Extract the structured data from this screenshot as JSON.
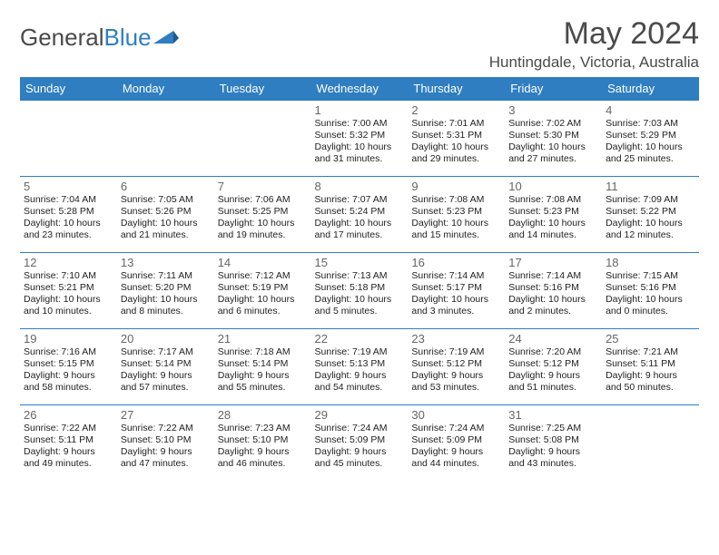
{
  "brand": {
    "part1": "General",
    "part2": "Blue"
  },
  "title": "May 2024",
  "location": "Huntingdale, Victoria, Australia",
  "header_bg": "#2f7ec1",
  "border_color": "#2f7ec1",
  "dayNames": [
    "Sunday",
    "Monday",
    "Tuesday",
    "Wednesday",
    "Thursday",
    "Friday",
    "Saturday"
  ],
  "weeks": [
    [
      null,
      null,
      null,
      {
        "n": "1",
        "sr": "7:00 AM",
        "ss": "5:32 PM",
        "dl": "10 hours and 31 minutes."
      },
      {
        "n": "2",
        "sr": "7:01 AM",
        "ss": "5:31 PM",
        "dl": "10 hours and 29 minutes."
      },
      {
        "n": "3",
        "sr": "7:02 AM",
        "ss": "5:30 PM",
        "dl": "10 hours and 27 minutes."
      },
      {
        "n": "4",
        "sr": "7:03 AM",
        "ss": "5:29 PM",
        "dl": "10 hours and 25 minutes."
      }
    ],
    [
      {
        "n": "5",
        "sr": "7:04 AM",
        "ss": "5:28 PM",
        "dl": "10 hours and 23 minutes."
      },
      {
        "n": "6",
        "sr": "7:05 AM",
        "ss": "5:26 PM",
        "dl": "10 hours and 21 minutes."
      },
      {
        "n": "7",
        "sr": "7:06 AM",
        "ss": "5:25 PM",
        "dl": "10 hours and 19 minutes."
      },
      {
        "n": "8",
        "sr": "7:07 AM",
        "ss": "5:24 PM",
        "dl": "10 hours and 17 minutes."
      },
      {
        "n": "9",
        "sr": "7:08 AM",
        "ss": "5:23 PM",
        "dl": "10 hours and 15 minutes."
      },
      {
        "n": "10",
        "sr": "7:08 AM",
        "ss": "5:23 PM",
        "dl": "10 hours and 14 minutes."
      },
      {
        "n": "11",
        "sr": "7:09 AM",
        "ss": "5:22 PM",
        "dl": "10 hours and 12 minutes."
      }
    ],
    [
      {
        "n": "12",
        "sr": "7:10 AM",
        "ss": "5:21 PM",
        "dl": "10 hours and 10 minutes."
      },
      {
        "n": "13",
        "sr": "7:11 AM",
        "ss": "5:20 PM",
        "dl": "10 hours and 8 minutes."
      },
      {
        "n": "14",
        "sr": "7:12 AM",
        "ss": "5:19 PM",
        "dl": "10 hours and 6 minutes."
      },
      {
        "n": "15",
        "sr": "7:13 AM",
        "ss": "5:18 PM",
        "dl": "10 hours and 5 minutes."
      },
      {
        "n": "16",
        "sr": "7:14 AM",
        "ss": "5:17 PM",
        "dl": "10 hours and 3 minutes."
      },
      {
        "n": "17",
        "sr": "7:14 AM",
        "ss": "5:16 PM",
        "dl": "10 hours and 2 minutes."
      },
      {
        "n": "18",
        "sr": "7:15 AM",
        "ss": "5:16 PM",
        "dl": "10 hours and 0 minutes."
      }
    ],
    [
      {
        "n": "19",
        "sr": "7:16 AM",
        "ss": "5:15 PM",
        "dl": "9 hours and 58 minutes."
      },
      {
        "n": "20",
        "sr": "7:17 AM",
        "ss": "5:14 PM",
        "dl": "9 hours and 57 minutes."
      },
      {
        "n": "21",
        "sr": "7:18 AM",
        "ss": "5:14 PM",
        "dl": "9 hours and 55 minutes."
      },
      {
        "n": "22",
        "sr": "7:19 AM",
        "ss": "5:13 PM",
        "dl": "9 hours and 54 minutes."
      },
      {
        "n": "23",
        "sr": "7:19 AM",
        "ss": "5:12 PM",
        "dl": "9 hours and 53 minutes."
      },
      {
        "n": "24",
        "sr": "7:20 AM",
        "ss": "5:12 PM",
        "dl": "9 hours and 51 minutes."
      },
      {
        "n": "25",
        "sr": "7:21 AM",
        "ss": "5:11 PM",
        "dl": "9 hours and 50 minutes."
      }
    ],
    [
      {
        "n": "26",
        "sr": "7:22 AM",
        "ss": "5:11 PM",
        "dl": "9 hours and 49 minutes."
      },
      {
        "n": "27",
        "sr": "7:22 AM",
        "ss": "5:10 PM",
        "dl": "9 hours and 47 minutes."
      },
      {
        "n": "28",
        "sr": "7:23 AM",
        "ss": "5:10 PM",
        "dl": "9 hours and 46 minutes."
      },
      {
        "n": "29",
        "sr": "7:24 AM",
        "ss": "5:09 PM",
        "dl": "9 hours and 45 minutes."
      },
      {
        "n": "30",
        "sr": "7:24 AM",
        "ss": "5:09 PM",
        "dl": "9 hours and 44 minutes."
      },
      {
        "n": "31",
        "sr": "7:25 AM",
        "ss": "5:08 PM",
        "dl": "9 hours and 43 minutes."
      },
      null
    ]
  ],
  "labels": {
    "sunrise": "Sunrise:",
    "sunset": "Sunset:",
    "daylight": "Daylight:"
  }
}
